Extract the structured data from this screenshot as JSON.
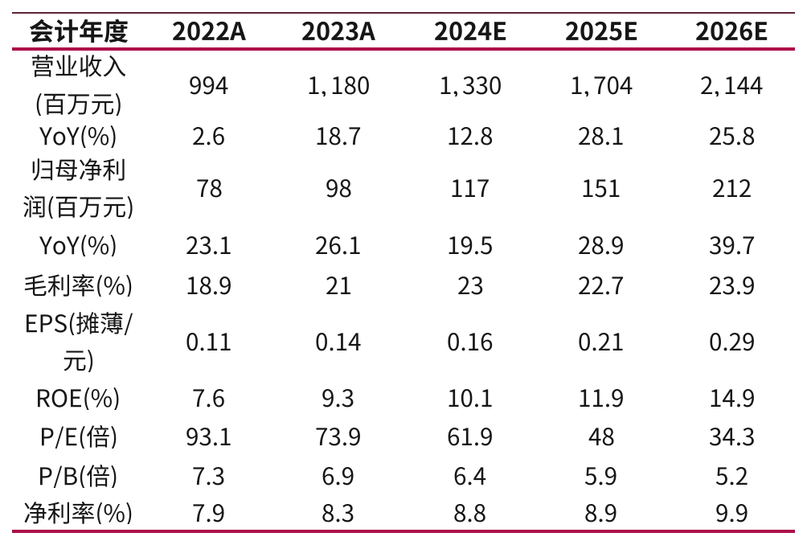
{
  "chart_data": {
    "type": "table",
    "columns": [
      "会计年度",
      "2022A",
      "2023A",
      "2024E",
      "2025E",
      "2026E"
    ],
    "rows": [
      {
        "label": "营业收入(百万元)",
        "values": [
          "994",
          "1,180",
          "1,330",
          "1,704",
          "2,144"
        ]
      },
      {
        "label": "YoY(%)",
        "values": [
          "2.6",
          "18.7",
          "12.8",
          "28.1",
          "25.8"
        ]
      },
      {
        "label": "归母净利润(百万元)",
        "values": [
          "78",
          "98",
          "117",
          "151",
          "212"
        ]
      },
      {
        "label": "YoY(%)",
        "values": [
          "23.1",
          "26.1",
          "19.5",
          "28.9",
          "39.7"
        ]
      },
      {
        "label": "毛利率(%)",
        "values": [
          "18.9",
          "21",
          "23",
          "22.7",
          "23.9"
        ]
      },
      {
        "label": "EPS(摊薄/元)",
        "values": [
          "0.11",
          "0.14",
          "0.16",
          "0.21",
          "0.29"
        ]
      },
      {
        "label": "ROE(%)",
        "values": [
          "7.6",
          "9.3",
          "10.1",
          "11.9",
          "14.9"
        ]
      },
      {
        "label": "P/E(倍)",
        "values": [
          "93.1",
          "73.9",
          "61.9",
          "48",
          "34.3"
        ]
      },
      {
        "label": "P/B(倍)",
        "values": [
          "7.3",
          "6.9",
          "6.4",
          "5.9",
          "5.2"
        ]
      },
      {
        "label": "净利率(%)",
        "values": [
          "7.9",
          "8.3",
          "8.8",
          "8.9",
          "9.9"
        ]
      }
    ],
    "grid": "horizontal rules only",
    "legend_position": "none"
  },
  "colors": {
    "background": "#ffffff",
    "text": "#161616",
    "top_rule": "#5e2434",
    "accent_rule": "#ac0e4a"
  }
}
